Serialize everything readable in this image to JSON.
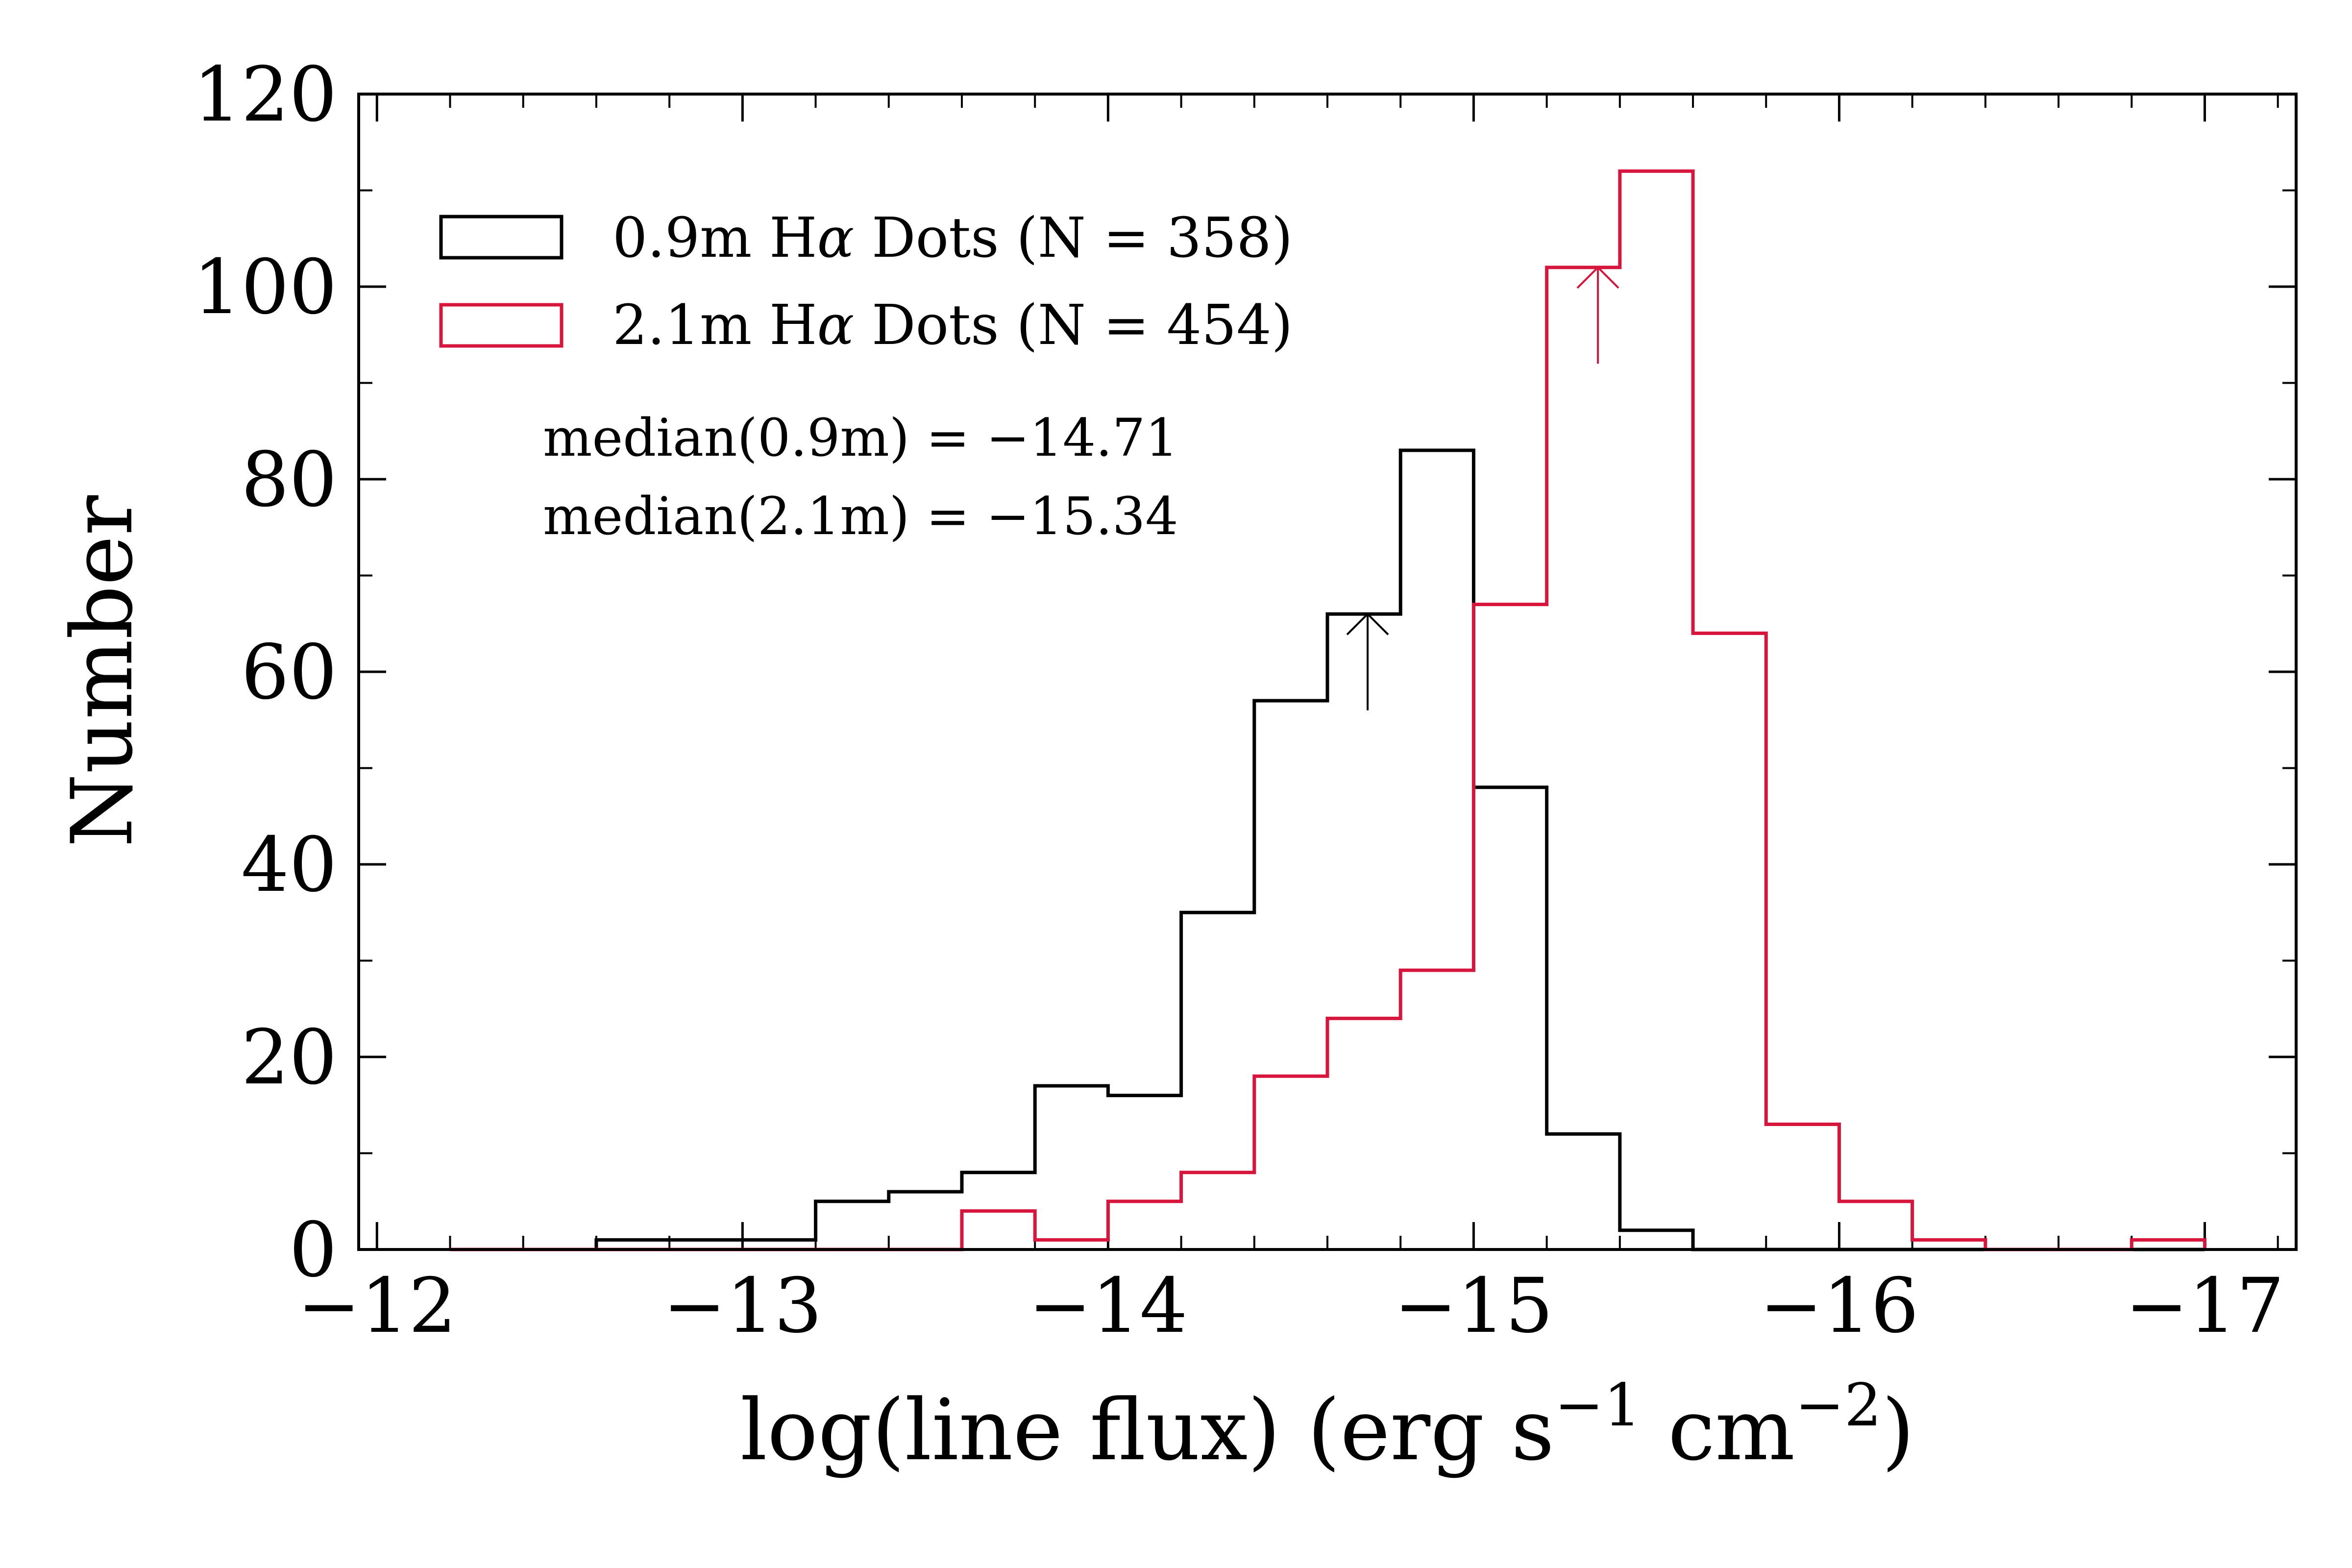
{
  "chart_data": {
    "type": "histogram",
    "xlabel": {
      "main": "log(line flux) (erg s",
      "exp1": "−1",
      "mid": " cm",
      "exp2": "−2",
      "end": ")"
    },
    "ylabel": "Number",
    "xlim": [
      -11.95,
      -17.25
    ],
    "ylim": [
      0,
      120
    ],
    "x_ticks": [
      -12,
      -13,
      -14,
      -15,
      -16,
      -17
    ],
    "x_tick_labels": [
      "−12",
      "−13",
      "−14",
      "−15",
      "−16",
      "−17"
    ],
    "y_ticks": [
      0,
      20,
      40,
      60,
      80,
      100,
      120
    ],
    "y_tick_labels": [
      "0",
      "20",
      "40",
      "60",
      "80",
      "100",
      "120"
    ],
    "bin_edges": [
      -12.2,
      -12.4,
      -12.6,
      -12.8,
      -13.0,
      -13.2,
      -13.4,
      -13.6,
      -13.8,
      -14.0,
      -14.2,
      -14.4,
      -14.6,
      -14.8,
      -15.0,
      -15.2,
      -15.4,
      -15.6,
      -15.8,
      -16.0,
      -16.2,
      -16.4,
      -16.6,
      -16.8,
      -17.0
    ],
    "series": [
      {
        "name": "0.9m Hα Dots (N = 358)",
        "legend_main": "0.9m H",
        "legend_rest": " Dots (N = 358)",
        "color": "#000000",
        "counts": [
          0,
          0,
          1,
          1,
          1,
          5,
          6,
          8,
          17,
          16,
          35,
          57,
          66,
          83,
          48,
          12,
          2,
          0,
          0,
          0,
          0,
          0,
          0,
          0
        ],
        "median": -14.71,
        "median_arrow_range": [
          56,
          66
        ]
      },
      {
        "name": "2.1m Hα Dots (N = 454)",
        "legend_main": "2.1m H",
        "legend_rest": " Dots (N = 454)",
        "color": "#d6163d",
        "counts": [
          0,
          0,
          0,
          0,
          0,
          0,
          0,
          4,
          1,
          5,
          8,
          18,
          24,
          29,
          67,
          102,
          112,
          64,
          13,
          5,
          1,
          0,
          0,
          1
        ],
        "median": -15.34,
        "median_arrow_range": [
          92,
          102
        ]
      }
    ],
    "legend_greek": "α",
    "annotations": [
      "median(0.9m) = −14.71",
      "median(2.1m) = −15.34"
    ],
    "legend_position": "upper-left"
  }
}
